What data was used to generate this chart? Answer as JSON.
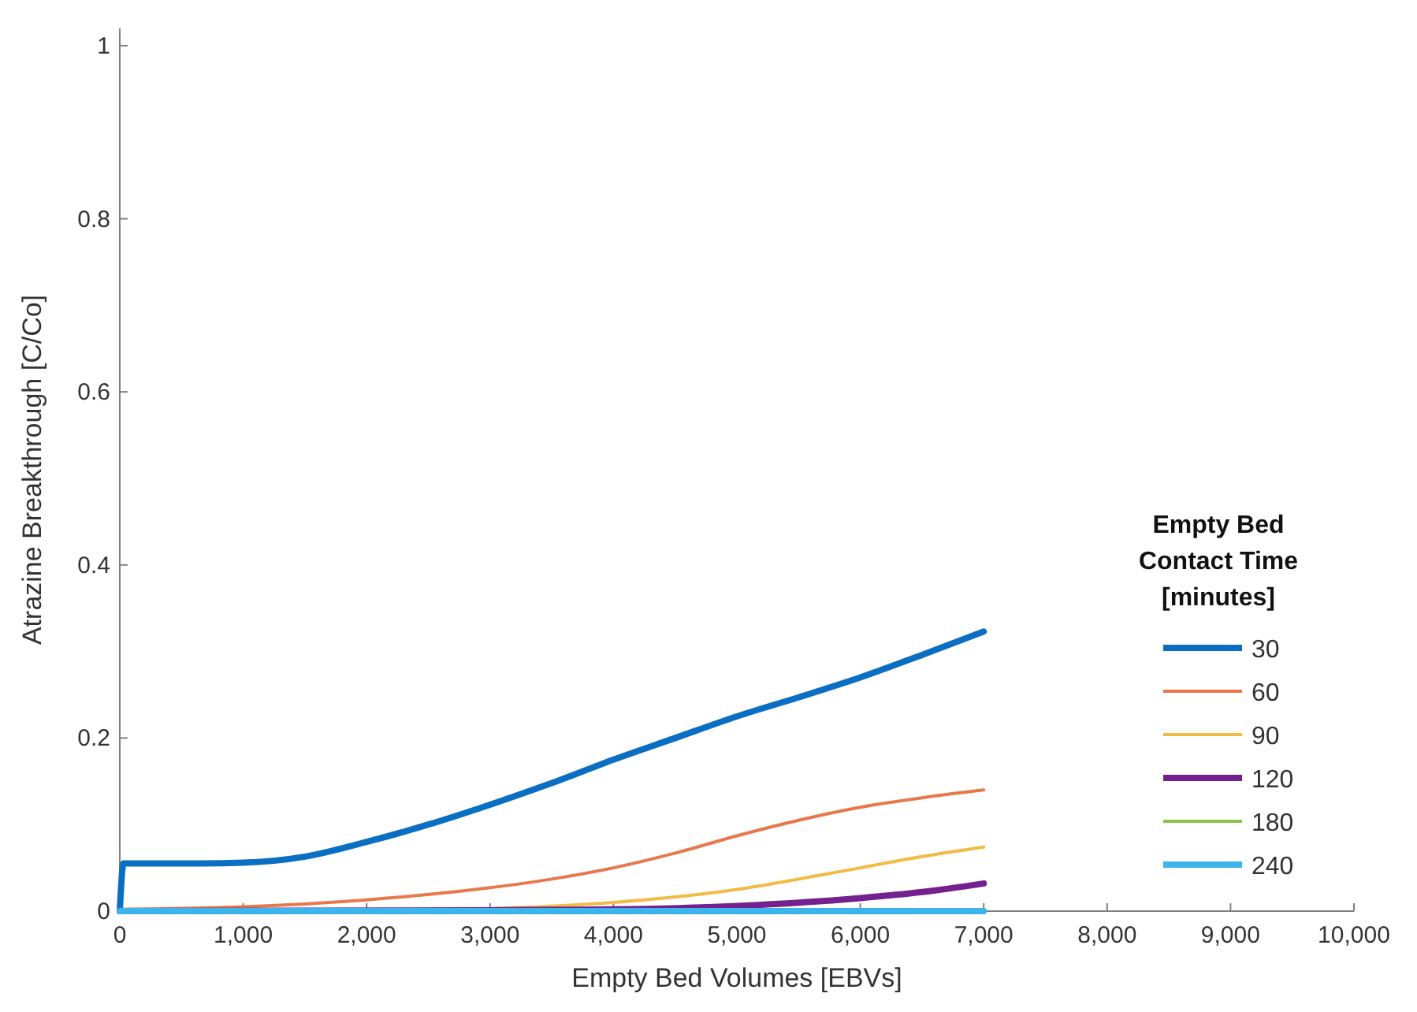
{
  "chart_data": {
    "type": "line",
    "xlabel": "Empty Bed Volumes [EBVs]",
    "ylabel": "Atrazine Breakthrough [C/Co]",
    "legend_title": "Empty Bed Contact Time [minutes]",
    "legend": "right",
    "grid": false,
    "line_style": "solid",
    "xlim": [
      0,
      10000
    ],
    "ylim": [
      0,
      1.02
    ],
    "xticks": [
      0,
      {
        "value": 1000,
        "label": "1,000"
      },
      {
        "value": 2000,
        "label": "2,000"
      },
      {
        "value": 3000,
        "label": "3,000"
      },
      {
        "value": 4000,
        "label": "4,000"
      },
      {
        "value": 5000,
        "label": "5,000"
      },
      {
        "value": 6000,
        "label": "6,000"
      },
      {
        "value": 7000,
        "label": "7,000"
      },
      {
        "value": 8000,
        "label": "8,000"
      },
      {
        "value": 9000,
        "label": "9,000"
      },
      {
        "value": 10000,
        "label": "10,000"
      }
    ],
    "yticks": [
      0,
      0.2,
      0.4,
      0.6,
      0.8,
      1
    ],
    "series": [
      {
        "name": "30",
        "color": "#0a6fc2",
        "x": [
          0,
          30,
          500,
          1000,
          1500,
          2000,
          2500,
          3000,
          3500,
          4000,
          4500,
          5000,
          5500,
          6000,
          6500,
          7000
        ],
        "values": [
          0,
          0.055,
          0.055,
          0.056,
          0.063,
          0.08,
          0.1,
          0.123,
          0.148,
          0.175,
          0.2,
          0.225,
          0.247,
          0.27,
          0.296,
          0.323
        ]
      },
      {
        "name": "60",
        "color": "#e8784a",
        "x": [
          0,
          1000,
          2000,
          3000,
          3500,
          4000,
          4500,
          5000,
          5500,
          6000,
          6500,
          7000
        ],
        "values": [
          0.002,
          0.005,
          0.013,
          0.027,
          0.037,
          0.05,
          0.067,
          0.087,
          0.105,
          0.12,
          0.131,
          0.14
        ]
      },
      {
        "name": "90",
        "color": "#f2bb45",
        "x": [
          0,
          2000,
          3000,
          4000,
          5000,
          5500,
          6000,
          6500,
          7000
        ],
        "values": [
          0,
          0.001,
          0.003,
          0.01,
          0.025,
          0.037,
          0.05,
          0.063,
          0.074
        ]
      },
      {
        "name": "120",
        "color": "#74208e",
        "x": [
          0,
          3000,
          4000,
          5000,
          6000,
          6500,
          7000
        ],
        "values": [
          0,
          0.001,
          0.002,
          0.006,
          0.015,
          0.022,
          0.032
        ]
      },
      {
        "name": "180",
        "color": "#8bc34a"
      },
      {
        "name": "240",
        "color": "#3cb4ec",
        "x": [
          0,
          7000
        ],
        "values": [
          0,
          0
        ]
      }
    ]
  }
}
